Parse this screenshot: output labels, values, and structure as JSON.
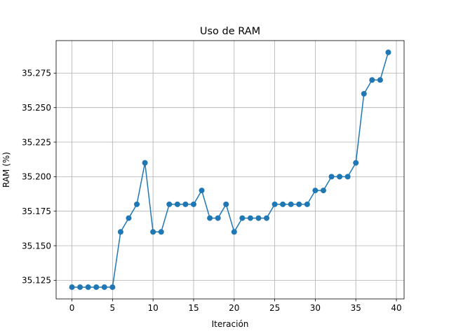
{
  "chart_data": {
    "type": "line",
    "title": "Uso de RAM",
    "xlabel": "Iteración",
    "ylabel": "RAM (%)",
    "xlim": [
      -1.95,
      40.95
    ],
    "ylim": [
      35.1115,
      35.2985
    ],
    "x_ticks": [
      0,
      5,
      10,
      15,
      20,
      25,
      30,
      35,
      40
    ],
    "x_tick_labels": [
      "0",
      "5",
      "10",
      "15",
      "20",
      "25",
      "30",
      "35",
      "40"
    ],
    "y_ticks": [
      35.125,
      35.15,
      35.175,
      35.2,
      35.225,
      35.25,
      35.275
    ],
    "y_tick_labels": [
      "35.125",
      "35.150",
      "35.175",
      "35.200",
      "35.225",
      "35.250",
      "35.275"
    ],
    "grid": true,
    "marker": "circle",
    "color": "#1f77b4",
    "series": [
      {
        "x": [
          0,
          1,
          2,
          3,
          4,
          5,
          6,
          7,
          8,
          9,
          10,
          11,
          12,
          13,
          14,
          15,
          16,
          17,
          18,
          19,
          20,
          21,
          22,
          23,
          24,
          25,
          26,
          27,
          28,
          29,
          30,
          31,
          32,
          33,
          34,
          35,
          36,
          37,
          38,
          39
        ],
        "values": [
          35.12,
          35.12,
          35.12,
          35.12,
          35.12,
          35.12,
          35.16,
          35.17,
          35.18,
          35.21,
          35.16,
          35.16,
          35.18,
          35.18,
          35.18,
          35.18,
          35.19,
          35.17,
          35.17,
          35.18,
          35.16,
          35.17,
          35.17,
          35.17,
          35.17,
          35.18,
          35.18,
          35.18,
          35.18,
          35.18,
          35.19,
          35.19,
          35.2,
          35.2,
          35.2,
          35.21,
          35.26,
          35.27,
          35.27,
          35.29
        ]
      }
    ]
  }
}
